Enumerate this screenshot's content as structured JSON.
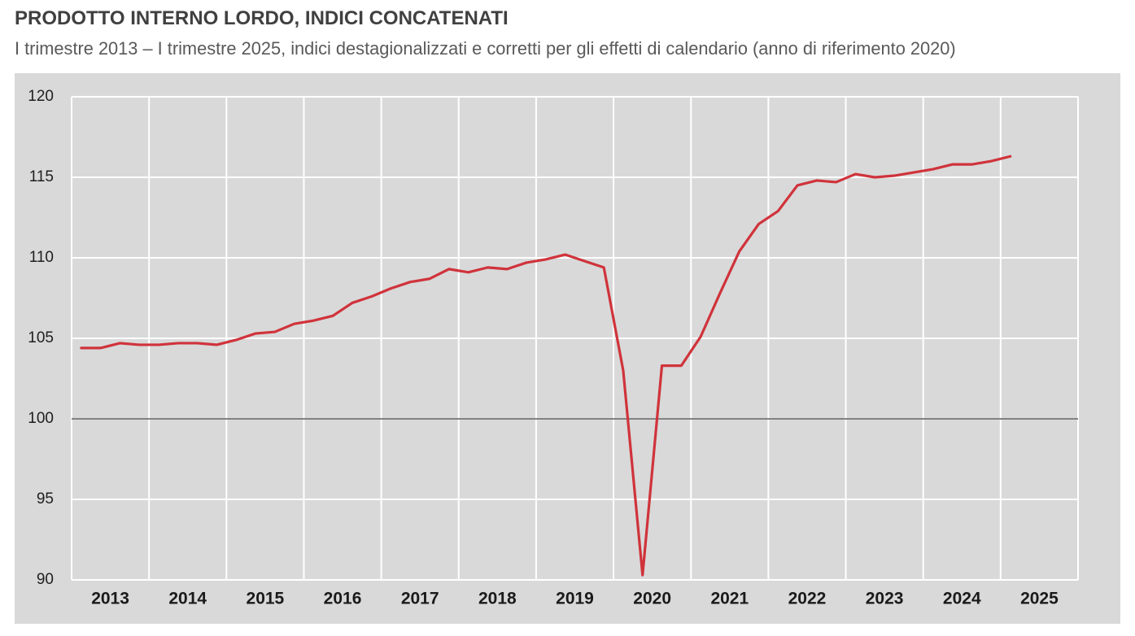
{
  "colors": {
    "plot_background": "#d9d9d9",
    "gridlines": "#ffffff",
    "reference_line": "#595959",
    "series_line": "#d0333b"
  },
  "chart_data": {
    "type": "line",
    "title": "PRODOTTO INTERNO LORDO, INDICI CONCATENATI",
    "subtitle": "I trimestre 2013 – I trimestre 2025, indici destagionalizzati e corretti per gli effetti di calendario (anno di riferimento 2020)",
    "xlabel": "",
    "ylabel": "",
    "x_tick_labels": [
      "2013",
      "2014",
      "2015",
      "2016",
      "2017",
      "2018",
      "2019",
      "2020",
      "2021",
      "2022",
      "2023",
      "2024",
      "2025"
    ],
    "y_ticks": [
      90,
      95,
      100,
      105,
      110,
      115,
      120
    ],
    "ylim": [
      90,
      120
    ],
    "reference_line": {
      "y": 100
    },
    "grid": true,
    "legend": "none",
    "series": [
      {
        "x": [
          "2013-Q1",
          "2013-Q2",
          "2013-Q3",
          "2013-Q4",
          "2014-Q1",
          "2014-Q2",
          "2014-Q3",
          "2014-Q4",
          "2015-Q1",
          "2015-Q2",
          "2015-Q3",
          "2015-Q4",
          "2016-Q1",
          "2016-Q2",
          "2016-Q3",
          "2016-Q4",
          "2017-Q1",
          "2017-Q2",
          "2017-Q3",
          "2017-Q4",
          "2018-Q1",
          "2018-Q2",
          "2018-Q3",
          "2018-Q4",
          "2019-Q1",
          "2019-Q2",
          "2019-Q3",
          "2019-Q4",
          "2020-Q1",
          "2020-Q2",
          "2020-Q3",
          "2020-Q4",
          "2021-Q1",
          "2021-Q2",
          "2021-Q3",
          "2021-Q4",
          "2022-Q1",
          "2022-Q2",
          "2022-Q3",
          "2022-Q4",
          "2023-Q1",
          "2023-Q2",
          "2023-Q3",
          "2023-Q4",
          "2024-Q1",
          "2024-Q2",
          "2024-Q3",
          "2024-Q4",
          "2025-Q1"
        ],
        "values": [
          104.4,
          104.4,
          104.7,
          104.6,
          104.6,
          104.7,
          104.7,
          104.6,
          104.9,
          105.3,
          105.4,
          105.9,
          106.1,
          106.4,
          107.2,
          107.6,
          108.1,
          108.5,
          108.7,
          109.3,
          109.1,
          109.4,
          109.3,
          109.7,
          109.9,
          110.2,
          109.8,
          109.4,
          103.0,
          90.3,
          103.3,
          103.3,
          105.1,
          107.8,
          110.4,
          112.1,
          112.9,
          114.5,
          114.8,
          114.7,
          115.2,
          115.0,
          115.1,
          115.3,
          115.5,
          115.8,
          115.8,
          116.0,
          116.3
        ]
      }
    ]
  }
}
